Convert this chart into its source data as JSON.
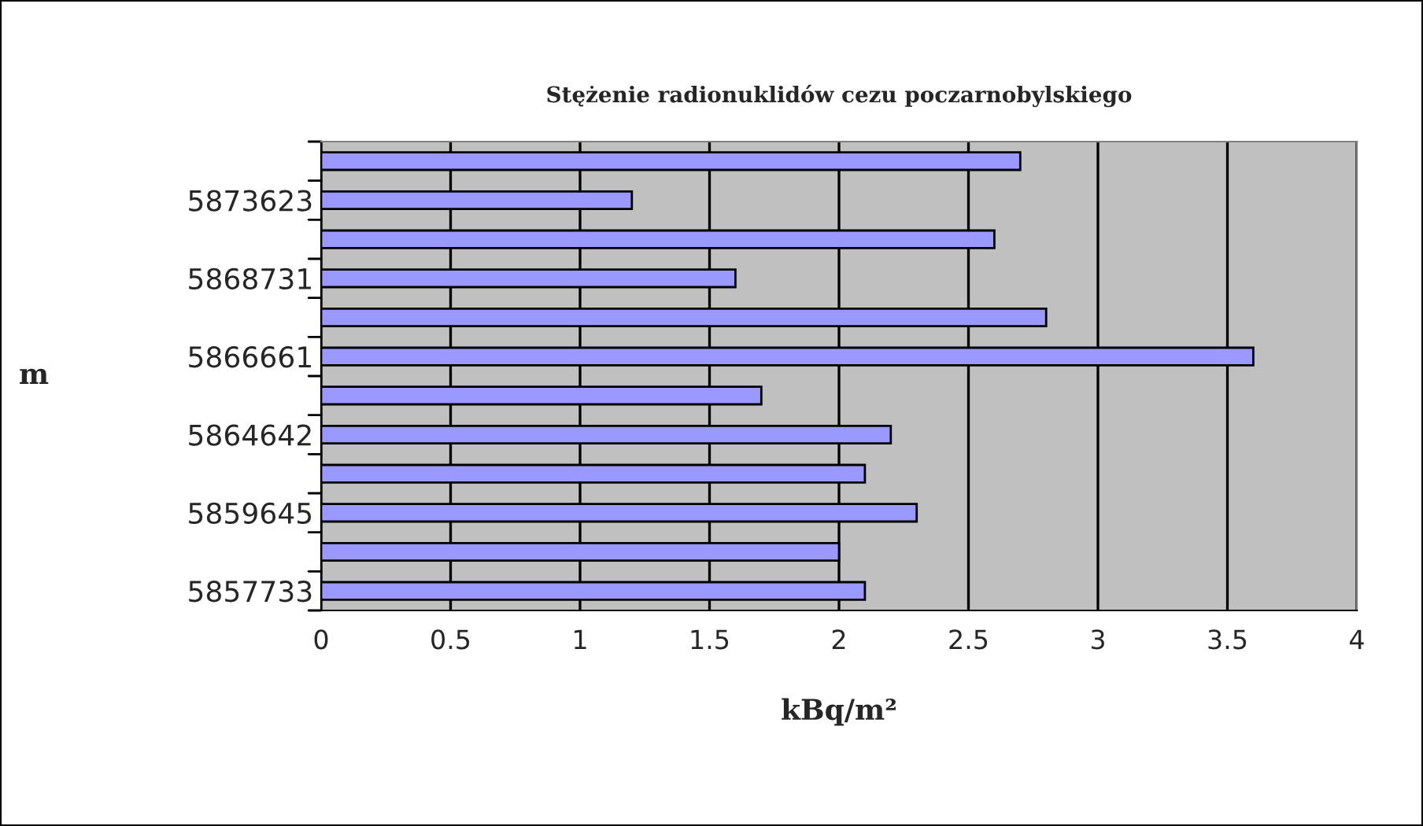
{
  "chart_data": {
    "type": "bar",
    "orientation": "horizontal",
    "title": "Stężenie radionuklidów cezu poczarnobylskiego",
    "xlabel": "kBq/m²",
    "ylabel": "m",
    "categories": [
      null,
      "5873623",
      null,
      "5868731",
      null,
      "5866661",
      null,
      "5864642",
      null,
      "5859645",
      null,
      "5857733"
    ],
    "values": [
      2.7,
      1.2,
      2.6,
      1.6,
      2.8,
      3.6,
      1.7,
      2.2,
      2.1,
      2.3,
      2.0,
      2.1
    ],
    "color": "#9999ff",
    "xlim": [
      0,
      4
    ],
    "xticks": [
      0,
      0.5,
      1,
      1.5,
      2,
      2.5,
      3,
      3.5,
      4
    ],
    "grid": "x"
  }
}
